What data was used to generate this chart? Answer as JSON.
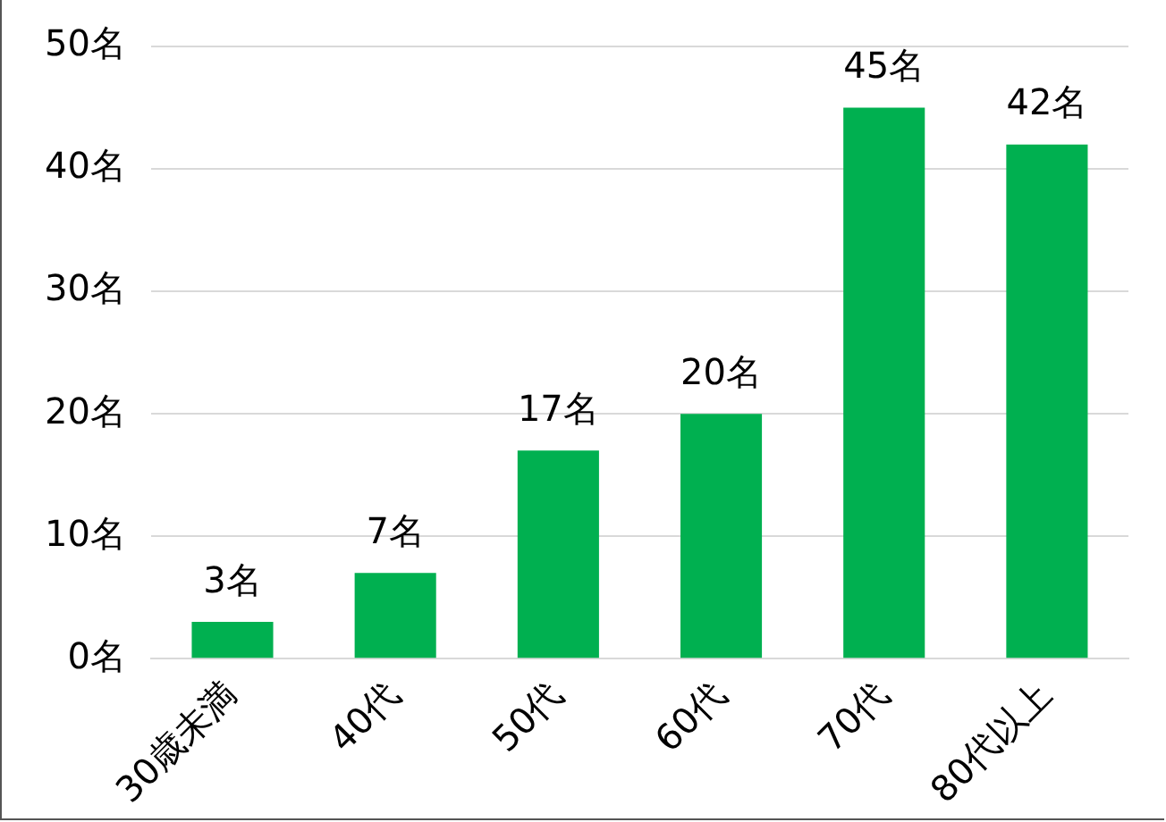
{
  "chart_data": {
    "type": "bar",
    "categories": [
      "30歳未満",
      "40代",
      "50代",
      "60代",
      "70代",
      "80代以上"
    ],
    "values": [
      3,
      7,
      17,
      20,
      45,
      42
    ],
    "value_labels": [
      "3名",
      "7名",
      "17名",
      "20名",
      "45名",
      "42名"
    ],
    "color": "#00b050",
    "ylim": [
      0,
      50
    ],
    "yticks": [
      {
        "value": 0,
        "label": "0名"
      },
      {
        "value": 10,
        "label": "10名"
      },
      {
        "value": 20,
        "label": "20名"
      },
      {
        "value": 30,
        "label": "30名"
      },
      {
        "value": 40,
        "label": "40名"
      },
      {
        "value": 50,
        "label": "50名"
      }
    ],
    "grid": "y"
  }
}
